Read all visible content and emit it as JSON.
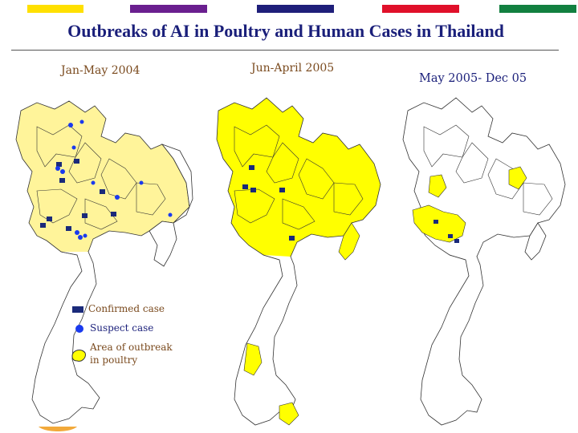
{
  "title": "Outbreaks of AI in Poultry and Human Cases in Thailand",
  "header_bar_colors": [
    "#ffe000",
    "#6a1f8f",
    "#1f1f7a",
    "#e0102a",
    "#128040"
  ],
  "panels": [
    {
      "label": "Jan-May 2004"
    },
    {
      "label": "Jun-April  2005"
    },
    {
      "label": "May 2005- Dec 05"
    }
  ],
  "legend": {
    "confirmed": "Confirmed case",
    "suspect": "Suspect case",
    "area_line1": "Area of  outbreak",
    "area_line2": "in poultry"
  },
  "colors": {
    "light_fill": "#fff49a",
    "bright_fill": "#ffff00",
    "confirmed_marker": "#1a2a7a",
    "suspect_marker": "#1a3aee"
  }
}
